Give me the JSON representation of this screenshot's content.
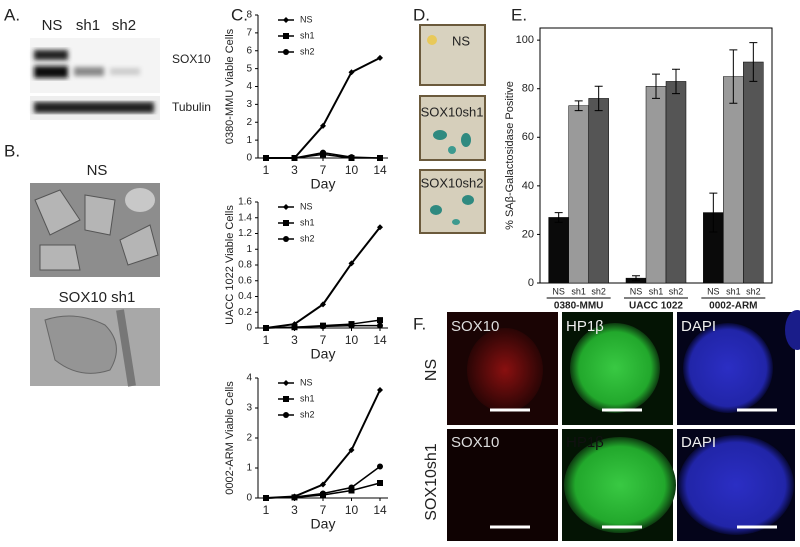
{
  "panels": {
    "A": {
      "label": "A.",
      "lanes": [
        "NS",
        "sh1",
        "sh2"
      ],
      "bands": [
        "SOX10",
        "Tubulin"
      ]
    },
    "B": {
      "label": "B.",
      "images": [
        "NS",
        "SOX10 sh1"
      ]
    },
    "C": {
      "label": "C."
    },
    "D": {
      "label": "D.",
      "images": [
        "NS",
        "SOX10sh1",
        "SOX10sh2"
      ]
    },
    "E": {
      "label": "E."
    },
    "F": {
      "label": "F.",
      "rows": [
        "NS",
        "SOX10sh1"
      ],
      "columns": [
        "SOX10",
        "HP1β",
        "DAPI"
      ]
    }
  },
  "chart_data": [
    {
      "type": "line",
      "ylabel": "0380-MMU Viable Cells",
      "xlabel": "Day",
      "categories": [
        "1",
        "3",
        "7",
        "10",
        "14"
      ],
      "series": [
        {
          "name": "NS",
          "color": "#000000",
          "marker": "diamond",
          "values": [
            0,
            0,
            1.8,
            4.8,
            5.6
          ]
        },
        {
          "name": "sh1",
          "color": "#000000",
          "marker": "square",
          "values": [
            0,
            0,
            0.2,
            0,
            0
          ]
        },
        {
          "name": "sh2",
          "color": "#000000",
          "marker": "circle",
          "values": [
            0,
            0,
            0.3,
            0.05,
            0
          ]
        }
      ],
      "ylim": [
        0,
        8
      ],
      "yticks": [
        0,
        1,
        2,
        3,
        4,
        5,
        6,
        7,
        8
      ],
      "legend": "top-left"
    },
    {
      "type": "line",
      "ylabel": "UACC 1022 Viable Cells",
      "xlabel": "Day",
      "categories": [
        "1",
        "3",
        "7",
        "10",
        "14"
      ],
      "series": [
        {
          "name": "NS",
          "color": "#000000",
          "marker": "diamond",
          "values": [
            0,
            0.05,
            0.3,
            0.82,
            1.28
          ]
        },
        {
          "name": "sh1",
          "color": "#000000",
          "marker": "square",
          "values": [
            0,
            0.01,
            0.03,
            0.05,
            0.1
          ]
        },
        {
          "name": "sh2",
          "color": "#000000",
          "marker": "circle",
          "values": [
            0,
            0.01,
            0.02,
            0.03,
            0.03
          ]
        }
      ],
      "ylim": [
        0,
        1.6
      ],
      "yticks": [
        0,
        0.2,
        0.4,
        0.6,
        0.8,
        1,
        1.2,
        1.4,
        1.6
      ],
      "legend": "top-left"
    },
    {
      "type": "line",
      "ylabel": "0002-ARM Viable Cells",
      "xlabel": "Day",
      "categories": [
        "1",
        "3",
        "7",
        "10",
        "14"
      ],
      "series": [
        {
          "name": "NS",
          "color": "#000000",
          "marker": "diamond",
          "values": [
            0,
            0.05,
            0.45,
            1.6,
            3.6
          ]
        },
        {
          "name": "sh1",
          "color": "#000000",
          "marker": "square",
          "values": [
            0,
            0.02,
            0.1,
            0.25,
            0.5
          ]
        },
        {
          "name": "sh2",
          "color": "#000000",
          "marker": "circle",
          "values": [
            0,
            0.03,
            0.15,
            0.35,
            1.05
          ]
        }
      ],
      "ylim": [
        0,
        4
      ],
      "yticks": [
        0,
        1,
        2,
        3,
        4
      ],
      "legend": "top-left"
    },
    {
      "type": "bar",
      "ylabel": "% SAβ-Galactosidase Positive",
      "categories": [
        "0380-MMU",
        "UACC 1022",
        "0002-ARM"
      ],
      "series": [
        {
          "name": "NS",
          "color": "#0a0a0a",
          "values": [
            27,
            2,
            29
          ],
          "errors": [
            2,
            1,
            8
          ]
        },
        {
          "name": "sh1",
          "color": "#9a9a9a",
          "values": [
            73,
            81,
            85
          ],
          "errors": [
            2,
            5,
            11
          ]
        },
        {
          "name": "sh2",
          "color": "#555555",
          "values": [
            76,
            83,
            91
          ],
          "errors": [
            5,
            5,
            8
          ]
        }
      ],
      "ylim": [
        0,
        105
      ],
      "yticks": [
        0,
        20,
        40,
        60,
        80,
        100
      ]
    }
  ]
}
